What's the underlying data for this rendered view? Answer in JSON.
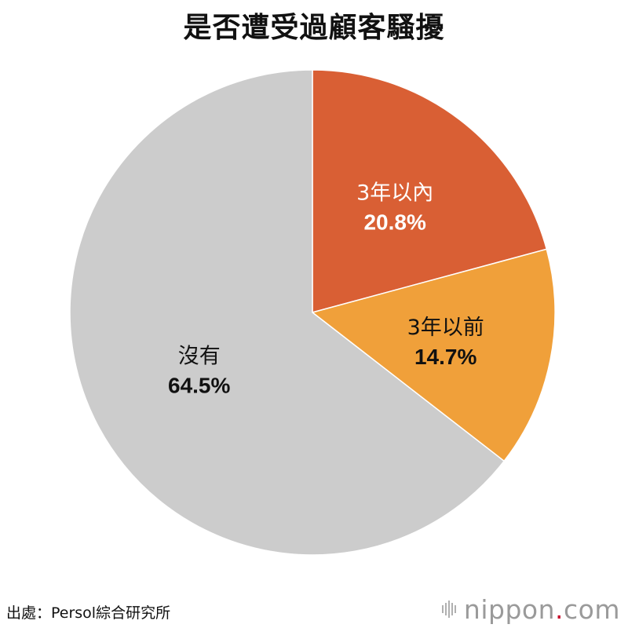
{
  "chart_data": {
    "type": "pie",
    "title": "是否遭受過顧客騷擾",
    "slices": [
      {
        "label": "3年以內",
        "value": 20.8,
        "value_label": "20.8%",
        "color": "#d95f34",
        "text_color": "#ffffff"
      },
      {
        "label": "3年以前",
        "value": 14.7,
        "value_label": "14.7%",
        "color": "#f0a03a",
        "text_color": "#111111"
      },
      {
        "label": "沒有",
        "value": 64.5,
        "value_label": "64.5%",
        "color": "#cccccc",
        "text_color": "#111111"
      }
    ],
    "start_angle_deg": 0,
    "direction": "clockwise",
    "legend": "none"
  },
  "source": "出處：Persol綜合研究所",
  "logo": {
    "name": "nippon",
    "dot": ".",
    "suffix": "com"
  }
}
